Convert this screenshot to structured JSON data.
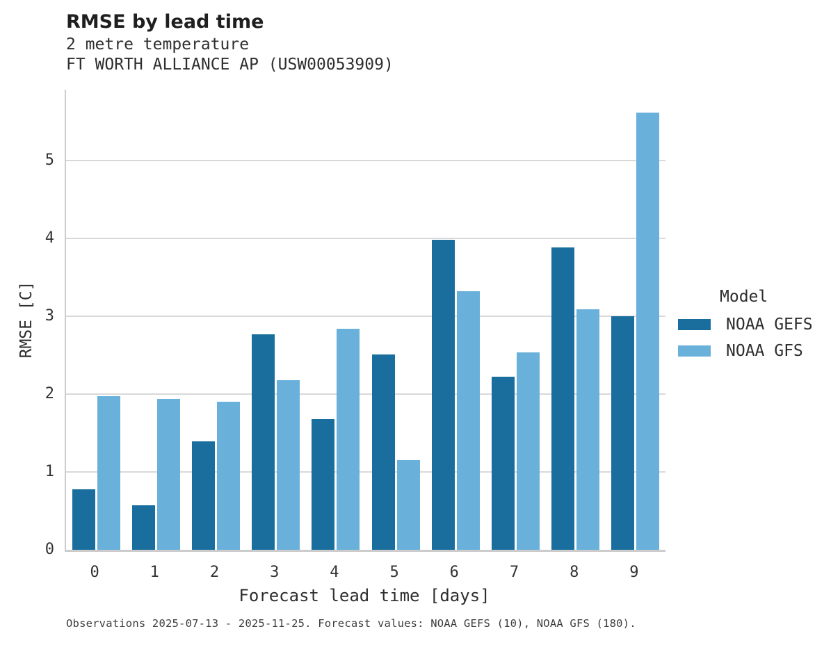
{
  "header": {
    "title": "RMSE by lead time",
    "subtitle1": "2 metre temperature",
    "subtitle2": "FT WORTH ALLIANCE AP (USW00053909)"
  },
  "footer": {
    "caption": "Observations 2025-07-13 - 2025-11-25. Forecast values: NOAA GEFS (10), NOAA GFS (180)."
  },
  "legend": {
    "title": "Model",
    "items": [
      {
        "label": "NOAA GEFS",
        "color": "#1a6e9d"
      },
      {
        "label": "NOAA GFS",
        "color": "#69b0da"
      }
    ]
  },
  "colors": {
    "series_dark_blue": "#1a6e9d",
    "series_light_blue": "#69b0da",
    "gridline": "#d9d9d9",
    "axis_spine": "#cccccc",
    "text": "#262626"
  },
  "chart_data": {
    "type": "bar",
    "title": "RMSE by lead time",
    "subtitle": [
      "2 metre temperature",
      "FT WORTH ALLIANCE AP (USW00053909)"
    ],
    "xlabel": "Forecast lead time [days]",
    "ylabel": "RMSE [C]",
    "categories": [
      "0",
      "1",
      "2",
      "3",
      "4",
      "5",
      "6",
      "7",
      "8",
      "9"
    ],
    "series": [
      {
        "name": "NOAA GEFS",
        "color": "#1a6e9d",
        "values": [
          0.78,
          0.57,
          1.39,
          2.77,
          1.68,
          2.51,
          3.98,
          2.22,
          3.88,
          3.0
        ]
      },
      {
        "name": "NOAA GFS",
        "color": "#69b0da",
        "values": [
          1.97,
          1.94,
          1.9,
          2.18,
          2.84,
          1.15,
          3.32,
          2.54,
          3.09,
          5.62
        ]
      }
    ],
    "yticks": [
      0,
      1,
      2,
      3,
      4,
      5
    ],
    "ylim": [
      0,
      5.91
    ],
    "grid": "horizontal",
    "legend_position": "right",
    "caption": "Observations 2025-07-13 - 2025-11-25. Forecast values: NOAA GEFS (10), NOAA GFS (180)."
  }
}
